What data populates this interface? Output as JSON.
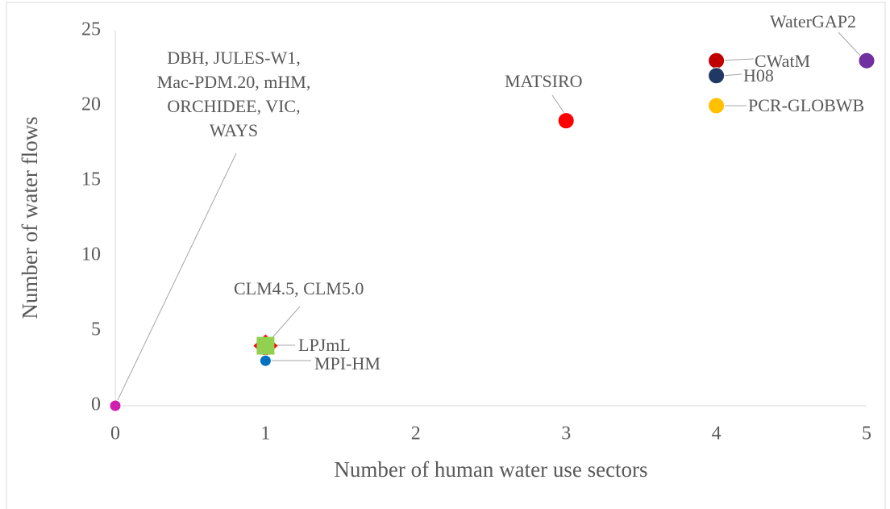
{
  "chart_data": {
    "type": "scatter",
    "xlabel": "Number of human water use sectors",
    "ylabel": "Number of water flows",
    "xlim": [
      0,
      5
    ],
    "xticks": [
      0,
      1,
      2,
      3,
      4,
      5
    ],
    "ylim": [
      0,
      25
    ],
    "yticks": [
      0,
      5,
      10,
      15,
      20,
      25
    ],
    "series": [
      {
        "name": "DBH, JULES-W1, Mac-PDM.20, mHM, ORCHIDEE, VIC, WAYS",
        "color": "#d020b0",
        "marker": "circle",
        "x": [
          0
        ],
        "y": [
          0
        ]
      },
      {
        "name": "CLM4.5, CLM5.0",
        "color": "#ff0000",
        "marker": "diamond",
        "x": [
          1
        ],
        "y": [
          4
        ]
      },
      {
        "name": "LPJmL",
        "color": "#92d050",
        "marker": "square",
        "x": [
          1
        ],
        "y": [
          4
        ]
      },
      {
        "name": "MPI-HM",
        "color": "#0070c0",
        "marker": "circle",
        "x": [
          1
        ],
        "y": [
          3
        ]
      },
      {
        "name": "MATSIRO",
        "color": "#ff0000",
        "marker": "circle",
        "x": [
          3
        ],
        "y": [
          19
        ]
      },
      {
        "name": "CWatM",
        "color": "#c00000",
        "marker": "circle",
        "x": [
          4
        ],
        "y": [
          23
        ]
      },
      {
        "name": "H08",
        "color": "#1f3864",
        "marker": "circle",
        "x": [
          4
        ],
        "y": [
          22
        ]
      },
      {
        "name": "PCR-GLOBWB",
        "color": "#ffc000",
        "marker": "circle",
        "x": [
          4
        ],
        "y": [
          20
        ]
      },
      {
        "name": "WaterGAP2",
        "color": "#7030a0",
        "marker": "circle",
        "x": [
          5
        ],
        "y": [
          23
        ]
      }
    ]
  }
}
